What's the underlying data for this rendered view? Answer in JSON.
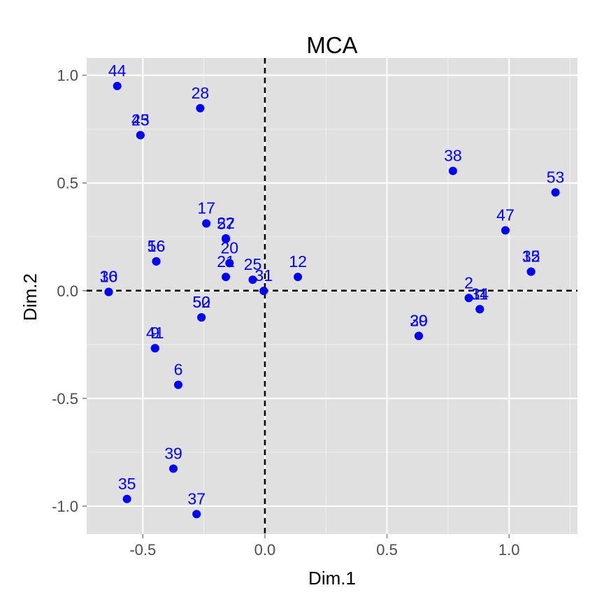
{
  "chart_data": {
    "type": "scatter",
    "title": "MCA",
    "xlabel": "Dim.1",
    "ylabel": "Dim.2",
    "xlim": [
      -0.73,
      1.28
    ],
    "ylim": [
      -1.13,
      1.08
    ],
    "xticks": [
      -0.5,
      0.0,
      0.5,
      1.0
    ],
    "xtick_labels": [
      "-0.5",
      "0.0",
      "0.5",
      "1.0"
    ],
    "yticks": [
      -1.0,
      -0.5,
      0.0,
      0.5,
      1.0
    ],
    "ytick_labels": [
      "-1.0",
      "-0.5",
      "0.0",
      "0.5",
      "1.0"
    ],
    "grid": true,
    "reference_lines": {
      "x": 0,
      "y": 0,
      "style": "dashed"
    },
    "colors": {
      "panel": "#e0e0e0",
      "grid": "#ffffff",
      "point": "#0000ff",
      "label": "#0000ff",
      "refline": "#000000"
    },
    "points": [
      {
        "label": "44",
        "x": -0.605,
        "y": 0.95
      },
      {
        "label": "28",
        "x": -0.265,
        "y": 0.847
      },
      {
        "label": "45",
        "x": -0.51,
        "y": 0.722
      },
      {
        "label": "23",
        "x": -0.51,
        "y": 0.722
      },
      {
        "label": "38",
        "x": 0.77,
        "y": 0.556
      },
      {
        "label": "53",
        "x": 1.19,
        "y": 0.456
      },
      {
        "label": "47",
        "x": 0.985,
        "y": 0.28
      },
      {
        "label": "17",
        "x": -0.24,
        "y": 0.312
      },
      {
        "label": "22",
        "x": -0.16,
        "y": 0.243
      },
      {
        "label": "57",
        "x": -0.16,
        "y": 0.24
      },
      {
        "label": "16",
        "x": -0.445,
        "y": 0.136
      },
      {
        "label": "56",
        "x": -0.445,
        "y": 0.136
      },
      {
        "label": "20",
        "x": -0.145,
        "y": 0.128
      },
      {
        "label": "21",
        "x": -0.16,
        "y": 0.064
      },
      {
        "label": "25",
        "x": -0.05,
        "y": 0.051
      },
      {
        "label": "12",
        "x": 0.135,
        "y": 0.064
      },
      {
        "label": "32",
        "x": 1.09,
        "y": 0.088
      },
      {
        "label": "15",
        "x": 1.09,
        "y": 0.088
      },
      {
        "label": "31",
        "x": -0.005,
        "y": -0.001
      },
      {
        "label": "36",
        "x": -0.64,
        "y": -0.006
      },
      {
        "label": "10",
        "x": -0.64,
        "y": -0.006
      },
      {
        "label": "2",
        "x": 0.835,
        "y": -0.034
      },
      {
        "label": "34",
        "x": 0.88,
        "y": -0.086
      },
      {
        "label": "11",
        "x": 0.88,
        "y": -0.086
      },
      {
        "label": "50",
        "x": -0.26,
        "y": -0.124
      },
      {
        "label": "52",
        "x": -0.26,
        "y": -0.124
      },
      {
        "label": "30",
        "x": 0.63,
        "y": -0.21
      },
      {
        "label": "29",
        "x": 0.63,
        "y": -0.21
      },
      {
        "label": "41",
        "x": -0.45,
        "y": -0.267
      },
      {
        "label": "9",
        "x": -0.45,
        "y": -0.267
      },
      {
        "label": "6",
        "x": -0.355,
        "y": -0.437
      },
      {
        "label": "39",
        "x": -0.375,
        "y": -0.826
      },
      {
        "label": "35",
        "x": -0.565,
        "y": -0.967
      },
      {
        "label": "37",
        "x": -0.28,
        "y": -1.037
      }
    ]
  }
}
